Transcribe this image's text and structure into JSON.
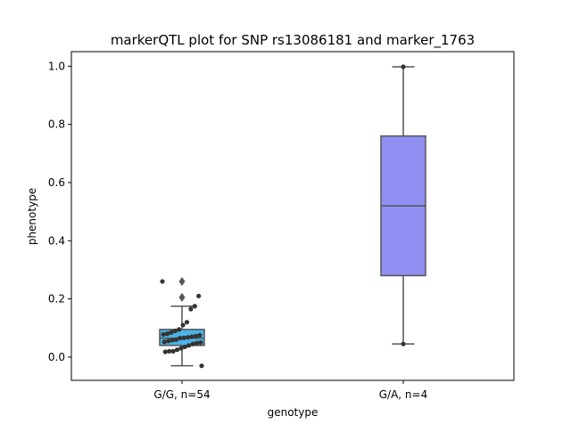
{
  "chart_data": {
    "type": "box",
    "title": "markerQTL plot for SNP rs13086181 and marker_1763",
    "xlabel": "genotype",
    "ylabel": "phenotype",
    "ylim": [
      -0.08,
      1.05
    ],
    "yticks": [
      0.0,
      0.2,
      0.4,
      0.6,
      0.8,
      1.0
    ],
    "ytick_labels": [
      "0.0",
      "0.2",
      "0.4",
      "0.6",
      "0.8",
      "1.0"
    ],
    "categories": [
      "G/G, n=54",
      "G/A, n=4"
    ],
    "boxes": [
      {
        "category": "G/G, n=54",
        "color": "#4ab4e8",
        "whisker_low": -0.03,
        "q1": 0.04,
        "median": 0.065,
        "q3": 0.095,
        "whisker_high": 0.175,
        "outliers": [
          0.205,
          0.26
        ],
        "points": [
          0.26,
          0.21,
          0.175,
          0.165,
          0.12,
          0.11,
          0.095,
          0.09,
          0.085,
          0.08,
          0.078,
          0.075,
          0.072,
          0.07,
          0.068,
          0.066,
          0.065,
          0.06,
          0.058,
          0.055,
          0.052,
          0.05,
          0.048,
          0.045,
          0.04,
          0.035,
          0.03,
          0.025,
          0.02,
          0.02,
          0.018,
          -0.03
        ]
      },
      {
        "category": "G/A, n=4",
        "color": "#9090f2",
        "whisker_low": 0.045,
        "q1": 0.28,
        "median": 0.52,
        "q3": 0.76,
        "whisker_high": 0.998,
        "outliers": [],
        "points": [
          0.998,
          0.045
        ]
      }
    ],
    "grid": false,
    "legend": "none"
  }
}
